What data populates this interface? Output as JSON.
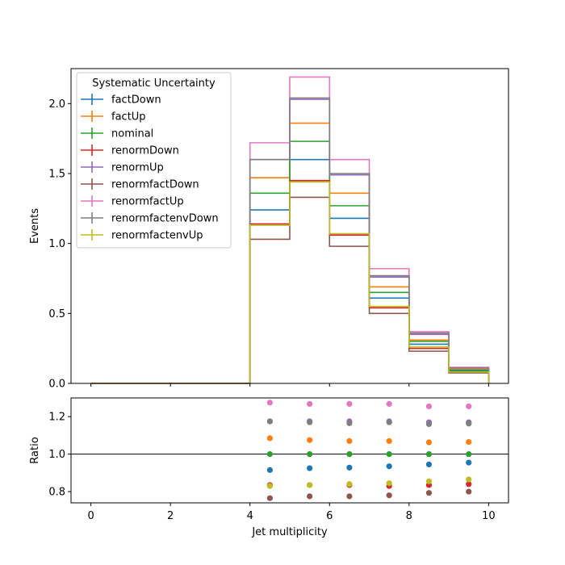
{
  "chart_data": [
    {
      "type": "step",
      "ylabel": "Events",
      "ylim": [
        0,
        2.25
      ],
      "xlim": [
        -0.5,
        10.5
      ],
      "yticks": [
        0.0,
        0.5,
        1.0,
        1.5,
        2.0
      ],
      "bin_edges": [
        0,
        1,
        2,
        3,
        4,
        5,
        6,
        7,
        8,
        9,
        10
      ],
      "legend_title": "Systematic Uncertainty",
      "legend_position": "top-left",
      "series": [
        {
          "name": "factDown",
          "color": "#1f77b4",
          "values": [
            0,
            0,
            0,
            0,
            1.24,
            1.6,
            1.18,
            0.61,
            0.28,
            0.09
          ]
        },
        {
          "name": "factUp",
          "color": "#ff7f0e",
          "values": [
            0,
            0,
            0,
            0,
            1.47,
            1.86,
            1.36,
            0.69,
            0.31,
            0.1
          ]
        },
        {
          "name": "nominal",
          "color": "#2ca02c",
          "values": [
            0,
            0,
            0,
            0,
            1.36,
            1.73,
            1.27,
            0.65,
            0.3,
            0.095
          ]
        },
        {
          "name": "renormDown",
          "color": "#d62728",
          "values": [
            0,
            0,
            0,
            0,
            1.14,
            1.45,
            1.06,
            0.54,
            0.25,
            0.08
          ]
        },
        {
          "name": "renormUp",
          "color": "#9467bd",
          "values": [
            0,
            0,
            0,
            0,
            1.6,
            2.03,
            1.49,
            0.76,
            0.35,
            0.11
          ]
        },
        {
          "name": "renormfactDown",
          "color": "#8c564b",
          "values": [
            0,
            0,
            0,
            0,
            1.03,
            1.33,
            0.98,
            0.5,
            0.23,
            0.075
          ]
        },
        {
          "name": "renormfactUp",
          "color": "#e377c2",
          "values": [
            0,
            0,
            0,
            0,
            1.72,
            2.19,
            1.6,
            0.82,
            0.37,
            0.115
          ]
        },
        {
          "name": "renormfactenvDown",
          "color": "#7f7f7f",
          "values": [
            0,
            0,
            0,
            0,
            1.6,
            2.04,
            1.5,
            0.77,
            0.36,
            0.11
          ]
        },
        {
          "name": "renormfactenvUp",
          "color": "#bcbd22",
          "values": [
            0,
            0,
            0,
            0,
            1.13,
            1.44,
            1.07,
            0.55,
            0.26,
            0.082
          ]
        }
      ]
    },
    {
      "type": "scatter",
      "xlabel": "Jet multiplicity",
      "ylabel": "Ratio",
      "ylim": [
        0.74,
        1.3
      ],
      "xlim": [
        -0.5,
        10.5
      ],
      "yticks": [
        0.8,
        1.0,
        1.2
      ],
      "xticks": [
        0,
        2,
        4,
        6,
        8,
        10
      ],
      "reference_line": 1.0,
      "x": [
        4.5,
        5.5,
        6.5,
        7.5,
        8.5,
        9.5
      ],
      "series": [
        {
          "name": "factDown",
          "color": "#1f77b4",
          "values": [
            0.915,
            0.925,
            0.928,
            0.935,
            0.945,
            0.955
          ]
        },
        {
          "name": "factUp",
          "color": "#ff7f0e",
          "values": [
            1.085,
            1.075,
            1.07,
            1.07,
            1.063,
            1.065
          ]
        },
        {
          "name": "nominal",
          "color": "#2ca02c",
          "values": [
            1.0,
            1.0,
            1.0,
            1.0,
            1.0,
            1.0
          ]
        },
        {
          "name": "renormDown",
          "color": "#d62728",
          "values": [
            0.835,
            0.835,
            0.835,
            0.83,
            0.835,
            0.84
          ]
        },
        {
          "name": "renormUp",
          "color": "#9467bd",
          "values": [
            1.175,
            1.175,
            1.175,
            1.175,
            1.17,
            1.17
          ]
        },
        {
          "name": "renormfactDown",
          "color": "#8c564b",
          "values": [
            0.765,
            0.775,
            0.775,
            0.78,
            0.793,
            0.8
          ]
        },
        {
          "name": "renormfactUp",
          "color": "#e377c2",
          "values": [
            1.275,
            1.268,
            1.268,
            1.268,
            1.255,
            1.255
          ]
        },
        {
          "name": "renormfactenvDown",
          "color": "#7f7f7f",
          "values": [
            1.175,
            1.17,
            1.165,
            1.17,
            1.16,
            1.163
          ]
        },
        {
          "name": "renormfactenvUp",
          "color": "#bcbd22",
          "values": [
            0.83,
            0.835,
            0.84,
            0.845,
            0.855,
            0.865
          ]
        }
      ]
    }
  ]
}
